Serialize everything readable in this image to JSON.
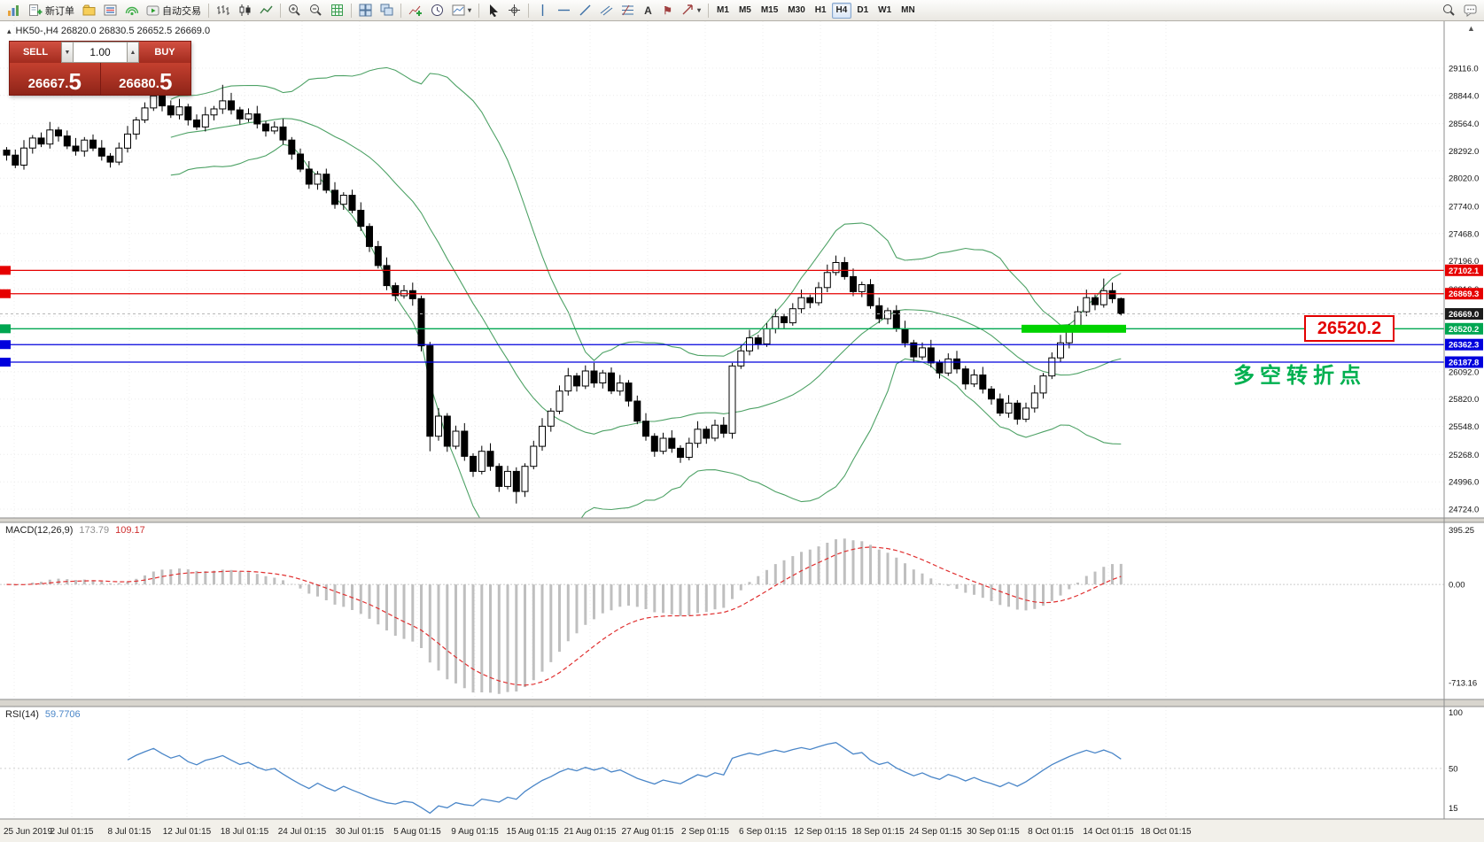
{
  "toolbar": {
    "new_order": "新订单",
    "autotrading": "自动交易",
    "timeframes": [
      "M1",
      "M5",
      "M15",
      "M30",
      "H1",
      "H4",
      "D1",
      "W1",
      "MN"
    ],
    "active_timeframe": "H4"
  },
  "quote_panel": {
    "sell_label": "SELL",
    "buy_label": "BUY",
    "volume": "1.00",
    "sell_price": "26667.",
    "sell_price_big": "5",
    "buy_price": "26680.",
    "buy_price_big": "5"
  },
  "annotations": {
    "price_callout": "26520.2",
    "turning_point_note": "多空转折点"
  },
  "chart_data": {
    "type": "candlestick",
    "symbol_label": "HK50-,H4 26820.0 26830.5 26652.5 26669.0",
    "timeframe": "H4",
    "current_price": 26669.0,
    "price_axis": {
      "top_price": 29583,
      "bottom_price": 24636,
      "ticks": [
        29116.0,
        28844.0,
        28564.0,
        28292.0,
        28020.0,
        27740.0,
        27468.0,
        27196.0,
        26916.0,
        26644.0,
        26364.0,
        26092.0,
        25820.0,
        25548.0,
        25268.0,
        24996.0,
        24724.0
      ]
    },
    "x_labels": [
      "25 Jun 2019",
      "2 Jul 01:15",
      "8 Jul 01:15",
      "12 Jul 01:15",
      "18 Jul 01:15",
      "24 Jul 01:15",
      "30 Jul 01:15",
      "5 Aug 01:15",
      "9 Aug 01:15",
      "15 Aug 01:15",
      "21 Aug 01:15",
      "27 Aug 01:15",
      "2 Sep 01:15",
      "6 Sep 01:15",
      "12 Sep 01:15",
      "18 Sep 01:15",
      "24 Sep 01:15",
      "30 Sep 01:15",
      "8 Oct 01:15",
      "14 Oct 01:15",
      "18 Oct 01:15"
    ],
    "bollinger": {
      "period": 20,
      "deviation": 2,
      "color": "#4ea266"
    },
    "hlines": [
      {
        "value": 27102.1,
        "color": "#e60000",
        "tag": "27102.1"
      },
      {
        "value": 26869.3,
        "color": "#e60000",
        "tag": "26869.3"
      },
      {
        "value": 26520.2,
        "color": "#00a651",
        "tag": "26520.2",
        "highlight": true
      },
      {
        "value": 26362.3,
        "color": "#0000dd",
        "tag": "26362.3"
      },
      {
        "value": 26187.8,
        "color": "#0000dd",
        "tag": "26187.8"
      }
    ],
    "macd": {
      "label": "MACD(12,26,9)",
      "value_main": "173.79",
      "value_signal": "109.17",
      "fast": 12,
      "slow": 26,
      "signal_period": 9,
      "axis_ticks": [
        395.25,
        0.0,
        -713.16
      ]
    },
    "rsi": {
      "label": "RSI(14)",
      "value": "59.7706",
      "period": 14,
      "axis_ticks": [
        100,
        50,
        15
      ]
    },
    "candles": [
      [
        28300,
        28330,
        28195,
        28250
      ],
      [
        28250,
        28305,
        28120,
        28150
      ],
      [
        28150,
        28400,
        28105,
        28320
      ],
      [
        28320,
        28450,
        28265,
        28420
      ],
      [
        28420,
        28475,
        28330,
        28360
      ],
      [
        28360,
        28580,
        28315,
        28500
      ],
      [
        28500,
        28530,
        28385,
        28440
      ],
      [
        28440,
        28495,
        28310,
        28340
      ],
      [
        28340,
        28420,
        28245,
        28290
      ],
      [
        28290,
        28430,
        28235,
        28400
      ],
      [
        28400,
        28455,
        28290,
        28320
      ],
      [
        28320,
        28400,
        28195,
        28240
      ],
      [
        28240,
        28270,
        28125,
        28180
      ],
      [
        28180,
        28375,
        28150,
        28320
      ],
      [
        28320,
        28540,
        28275,
        28460
      ],
      [
        28460,
        28630,
        28405,
        28600
      ],
      [
        28600,
        28775,
        28570,
        28720
      ],
      [
        28720,
        29060,
        28690,
        28840
      ],
      [
        28840,
        28870,
        28685,
        28740
      ],
      [
        28740,
        28795,
        28620,
        28650
      ],
      [
        28650,
        28810,
        28605,
        28730
      ],
      [
        28730,
        28760,
        28545,
        28600
      ],
      [
        28600,
        28655,
        28500,
        28530
      ],
      [
        28530,
        28730,
        28485,
        28650
      ],
      [
        28650,
        28740,
        28595,
        28710
      ],
      [
        28710,
        28950,
        28660,
        28790
      ],
      [
        28790,
        28870,
        28655,
        28700
      ],
      [
        28700,
        28730,
        28555,
        28610
      ],
      [
        28610,
        28715,
        28580,
        28660
      ],
      [
        28660,
        28740,
        28515,
        28560
      ],
      [
        28560,
        28590,
        28435,
        28490
      ],
      [
        28490,
        28585,
        28460,
        28530
      ],
      [
        28530,
        28610,
        28355,
        28400
      ],
      [
        28400,
        28430,
        28205,
        28260
      ],
      [
        28260,
        28315,
        28080,
        28110
      ],
      [
        28110,
        28190,
        27915,
        27960
      ],
      [
        27960,
        28090,
        27905,
        28060
      ],
      [
        28060,
        28115,
        27870,
        27900
      ],
      [
        27900,
        27980,
        27715,
        27760
      ],
      [
        27760,
        27880,
        27705,
        27850
      ],
      [
        27850,
        27905,
        27670,
        27700
      ],
      [
        27700,
        27780,
        27495,
        27540
      ],
      [
        27540,
        27570,
        27285,
        27340
      ],
      [
        27340,
        27395,
        27120,
        27150
      ],
      [
        27150,
        27230,
        26905,
        26950
      ],
      [
        26950,
        26980,
        26795,
        26850
      ],
      [
        26850,
        26955,
        26820,
        26900
      ],
      [
        26900,
        26980,
        26750,
        26820
      ],
      [
        26820,
        26850,
        26295,
        26350
      ],
      [
        26350,
        26390,
        25300,
        25450
      ],
      [
        25450,
        25730,
        25405,
        25650
      ],
      [
        25650,
        25680,
        25295,
        25350
      ],
      [
        25350,
        25555,
        25320,
        25500
      ],
      [
        25500,
        25580,
        25205,
        25250
      ],
      [
        25250,
        25280,
        25045,
        25100
      ],
      [
        25100,
        25355,
        25070,
        25300
      ],
      [
        25300,
        25380,
        25105,
        25150
      ],
      [
        25150,
        25180,
        24895,
        24950
      ],
      [
        24950,
        25155,
        24920,
        25100
      ],
      [
        25100,
        25140,
        24780,
        24900
      ],
      [
        24900,
        25180,
        24845,
        25150
      ],
      [
        25150,
        25405,
        25120,
        25350
      ],
      [
        25350,
        25630,
        25305,
        25550
      ],
      [
        25550,
        25730,
        25495,
        25700
      ],
      [
        25700,
        25955,
        25670,
        25900
      ],
      [
        25900,
        26130,
        25855,
        26050
      ],
      [
        26050,
        26080,
        25895,
        25950
      ],
      [
        25950,
        26155,
        25920,
        26100
      ],
      [
        26100,
        26180,
        25935,
        25980
      ],
      [
        25980,
        26110,
        25925,
        26080
      ],
      [
        26080,
        26135,
        25870,
        25900
      ],
      [
        25900,
        26060,
        25855,
        25980
      ],
      [
        25980,
        26010,
        25745,
        25800
      ],
      [
        25800,
        25855,
        25570,
        25600
      ],
      [
        25600,
        25680,
        25405,
        25450
      ],
      [
        25450,
        25480,
        25245,
        25300
      ],
      [
        25300,
        25485,
        25270,
        25430
      ],
      [
        25430,
        25510,
        25285,
        25330
      ],
      [
        25330,
        25360,
        25185,
        25240
      ],
      [
        25240,
        25435,
        25210,
        25380
      ],
      [
        25380,
        25600,
        25335,
        25520
      ],
      [
        25520,
        25550,
        25375,
        25430
      ],
      [
        25430,
        25615,
        25400,
        25560
      ],
      [
        25560,
        25640,
        25435,
        25480
      ],
      [
        25480,
        26180,
        25425,
        26150
      ],
      [
        26150,
        26355,
        26120,
        26300
      ],
      [
        26300,
        26510,
        26255,
        26430
      ],
      [
        26430,
        26460,
        26315,
        26370
      ],
      [
        26370,
        26575,
        26340,
        26520
      ],
      [
        26520,
        26720,
        26475,
        26640
      ],
      [
        26640,
        26670,
        26525,
        26580
      ],
      [
        26580,
        26775,
        26550,
        26720
      ],
      [
        26720,
        26910,
        26675,
        26830
      ],
      [
        26830,
        26860,
        26725,
        26780
      ],
      [
        26780,
        26985,
        26750,
        26930
      ],
      [
        26930,
        27160,
        26885,
        27080
      ],
      [
        27080,
        27250,
        27050,
        27180
      ],
      [
        27180,
        27235,
        27010,
        27040
      ],
      [
        27040,
        27120,
        26845,
        26890
      ],
      [
        26890,
        26990,
        26835,
        26960
      ],
      [
        26960,
        27015,
        26720,
        26750
      ],
      [
        26750,
        26830,
        26575,
        26620
      ],
      [
        26620,
        26730,
        26565,
        26700
      ],
      [
        26700,
        26755,
        26490,
        26520
      ],
      [
        26520,
        26600,
        26335,
        26380
      ],
      [
        26380,
        26410,
        26185,
        26240
      ],
      [
        26240,
        26385,
        26210,
        26330
      ],
      [
        26330,
        26410,
        26135,
        26180
      ],
      [
        26180,
        26210,
        26025,
        26080
      ],
      [
        26080,
        26275,
        26050,
        26220
      ],
      [
        26220,
        26300,
        26075,
        26120
      ],
      [
        26120,
        26150,
        25915,
        25970
      ],
      [
        25970,
        26115,
        25940,
        26060
      ],
      [
        26060,
        26140,
        25875,
        25920
      ],
      [
        25920,
        25950,
        25765,
        25820
      ],
      [
        25820,
        25875,
        25650,
        25680
      ],
      [
        25680,
        25860,
        25635,
        25780
      ],
      [
        25780,
        25810,
        25565,
        25620
      ],
      [
        25620,
        25785,
        25590,
        25730
      ],
      [
        25730,
        25960,
        25685,
        25880
      ],
      [
        25880,
        26080,
        25825,
        26050
      ],
      [
        26050,
        26285,
        26020,
        26230
      ],
      [
        26230,
        26460,
        26185,
        26380
      ],
      [
        26380,
        26570,
        26325,
        26540
      ],
      [
        26540,
        26745,
        26510,
        26690
      ],
      [
        26690,
        26910,
        26645,
        26830
      ],
      [
        26830,
        26860,
        26705,
        26760
      ],
      [
        26760,
        27020,
        26730,
        26900
      ],
      [
        26900,
        26980,
        26775,
        26820
      ],
      [
        26820,
        26830.5,
        26652.5,
        26669
      ]
    ]
  }
}
